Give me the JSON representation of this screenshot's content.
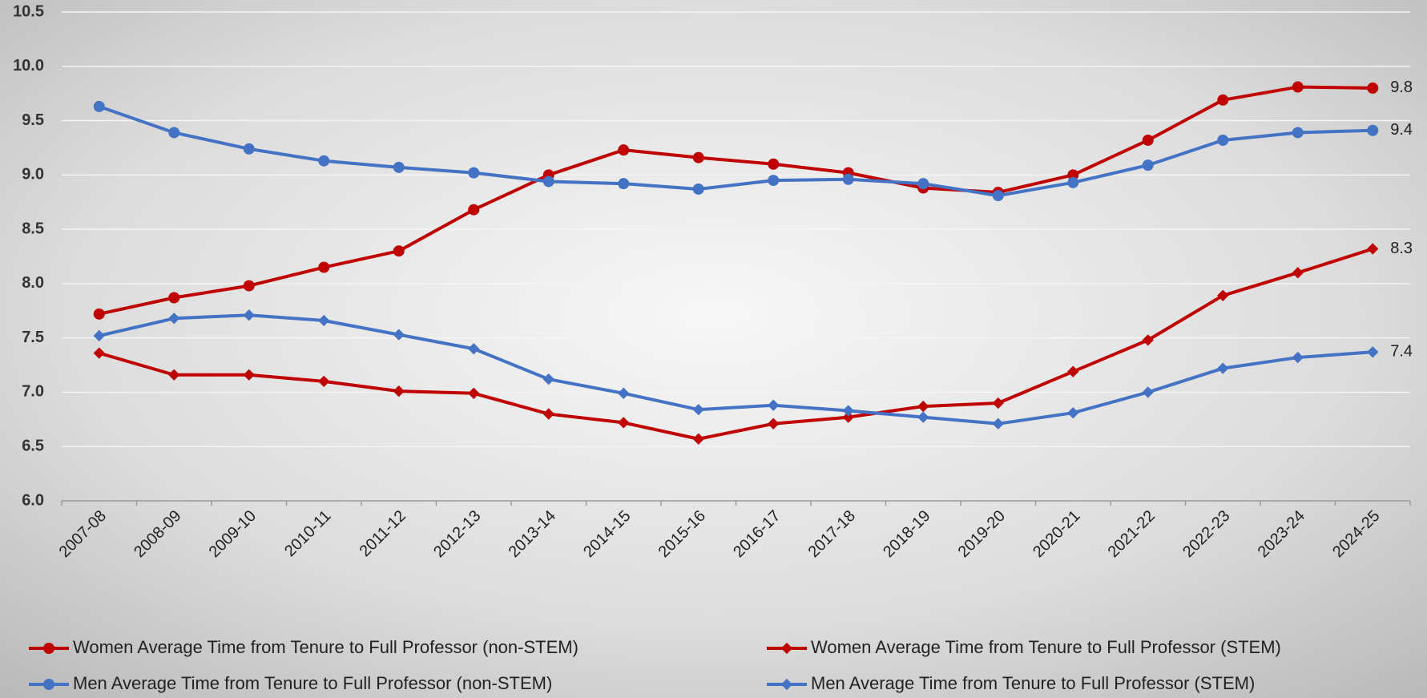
{
  "chart_data": {
    "type": "line",
    "categories": [
      "2007-08",
      "2008-09",
      "2009-10",
      "2010-11",
      "2011-12",
      "2012-13",
      "2013-14",
      "2014-15",
      "2015-16",
      "2016-17",
      "2017-18",
      "2018-19",
      "2019-20",
      "2020-21",
      "2021-22",
      "2022-23",
      "2023-24",
      "2024-25"
    ],
    "series": [
      {
        "name": "Women Average Time from Tenure to Full Professor (non-STEM)",
        "color": "#c00000",
        "marker": "circle",
        "values": [
          7.72,
          7.87,
          7.98,
          8.15,
          8.3,
          8.68,
          9.0,
          9.23,
          9.16,
          9.1,
          9.02,
          8.88,
          8.84,
          9.0,
          9.32,
          9.69,
          9.81,
          9.8
        ],
        "value_labels": [
          null,
          null,
          null,
          null,
          null,
          null,
          null,
          null,
          null,
          null,
          null,
          null,
          null,
          null,
          null,
          null,
          null,
          "9.8"
        ]
      },
      {
        "name": "Women Average Time from Tenure to Full Professor (STEM)",
        "color": "#c00000",
        "marker": "diamond",
        "values": [
          7.36,
          7.16,
          7.16,
          7.1,
          7.01,
          6.99,
          6.8,
          6.72,
          6.57,
          6.71,
          6.77,
          6.87,
          6.9,
          7.19,
          7.48,
          7.89,
          8.1,
          8.32
        ],
        "value_labels": [
          null,
          null,
          null,
          null,
          null,
          null,
          null,
          null,
          null,
          null,
          null,
          null,
          null,
          null,
          null,
          null,
          null,
          "8.3"
        ]
      },
      {
        "name": "Men Average Time from Tenure to Full Professor (non-STEM)",
        "color": "#4472c4",
        "marker": "circle",
        "values": [
          9.63,
          9.39,
          9.24,
          9.13,
          9.07,
          9.02,
          8.94,
          8.92,
          8.87,
          8.95,
          8.96,
          8.92,
          8.81,
          8.93,
          9.09,
          9.32,
          9.39,
          9.41
        ],
        "value_labels": [
          null,
          null,
          null,
          null,
          null,
          null,
          null,
          null,
          null,
          null,
          null,
          null,
          null,
          null,
          null,
          null,
          null,
          "9.4"
        ]
      },
      {
        "name": "Men Average Time from Tenure to Full Professor (STEM)",
        "color": "#4472c4",
        "marker": "diamond",
        "values": [
          7.52,
          7.68,
          7.71,
          7.66,
          7.53,
          7.4,
          7.12,
          6.99,
          6.84,
          6.88,
          6.83,
          6.77,
          6.71,
          6.81,
          7.0,
          7.22,
          7.32,
          7.37
        ],
        "value_labels": [
          null,
          null,
          null,
          null,
          null,
          null,
          null,
          null,
          null,
          null,
          null,
          null,
          null,
          null,
          null,
          null,
          null,
          "7.4"
        ]
      }
    ],
    "ylim": [
      6.0,
      10.5
    ],
    "yticks": [
      {
        "value": 6,
        "label": "6.0"
      },
      6.5,
      {
        "value": 7,
        "label": "7.0"
      },
      7.5,
      {
        "value": 8,
        "label": "8.0"
      },
      8.5,
      {
        "value": 9,
        "label": "9.0"
      },
      9.5,
      {
        "value": 10,
        "label": "10.0"
      },
      10.5
    ],
    "grid": true,
    "legend": "bottom"
  }
}
